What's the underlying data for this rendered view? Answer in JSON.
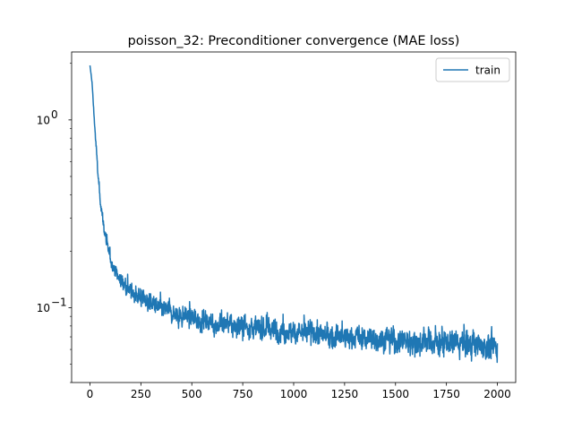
{
  "chart_data": {
    "type": "line",
    "title": "poisson_32: Preconditioner convergence (MAE loss)",
    "xlabel": "",
    "ylabel": "",
    "xlim": [
      -90,
      2090
    ],
    "ylim": [
      0.04,
      2.3
    ],
    "yscale": "log",
    "grid": false,
    "legend_position": "top-right",
    "x_ticks": [
      0,
      250,
      500,
      750,
      1000,
      1250,
      1500,
      1750,
      2000
    ],
    "x_tick_labels": [
      "0",
      "250",
      "500",
      "750",
      "1000",
      "1250",
      "1500",
      "1750",
      "2000"
    ],
    "y_major_ticks": [
      0.1,
      1.0
    ],
    "y_major_tick_labels": [
      "10",
      "10"
    ],
    "y_major_tick_exponents": [
      "−1",
      "0"
    ],
    "y_minor_ticks": [
      0.04,
      0.05,
      0.06,
      0.07,
      0.08,
      0.09,
      0.2,
      0.3,
      0.4,
      0.5,
      0.6,
      0.7,
      0.8,
      0.9,
      2.0
    ],
    "series": [
      {
        "name": "train",
        "color": "#1f77b4",
        "x": [
          0,
          10,
          20,
          30,
          40,
          50,
          60,
          70,
          80,
          90,
          100,
          120,
          140,
          160,
          180,
          200,
          250,
          300,
          350,
          400,
          450,
          500,
          600,
          700,
          800,
          900,
          1000,
          1100,
          1200,
          1300,
          1400,
          1500,
          1600,
          1700,
          1800,
          1900,
          2000
        ],
        "y": [
          1.95,
          1.6,
          1.05,
          0.72,
          0.5,
          0.38,
          0.31,
          0.26,
          0.225,
          0.2,
          0.185,
          0.16,
          0.145,
          0.135,
          0.128,
          0.122,
          0.112,
          0.104,
          0.098,
          0.094,
          0.09,
          0.087,
          0.083,
          0.08,
          0.078,
          0.076,
          0.074,
          0.072,
          0.07,
          0.069,
          0.068,
          0.067,
          0.066,
          0.065,
          0.064,
          0.063,
          0.062
        ],
        "noise": [
          0,
          0.02,
          0.04,
          0.05,
          0.06,
          0.07,
          0.08,
          0.08,
          0.09,
          0.09,
          0.1,
          0.1,
          0.11,
          0.11,
          0.12,
          0.12,
          0.13,
          0.13,
          0.14,
          0.14,
          0.15,
          0.15,
          0.15,
          0.16,
          0.16,
          0.16,
          0.17,
          0.17,
          0.17,
          0.17,
          0.18,
          0.18,
          0.18,
          0.18,
          0.18,
          0.18,
          0.18
        ]
      }
    ]
  }
}
